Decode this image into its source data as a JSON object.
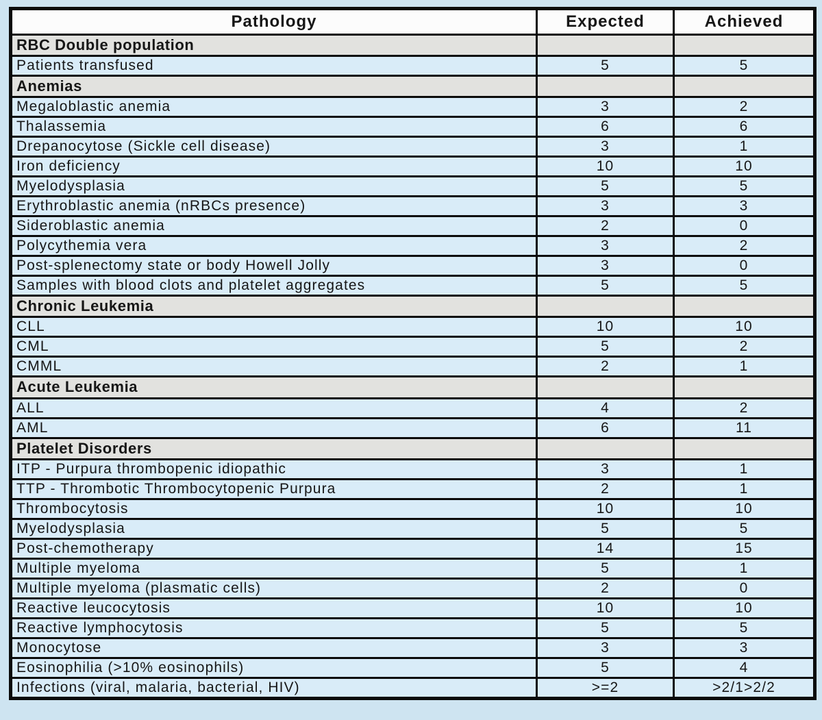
{
  "colors": {
    "page_background": "#cee4f1",
    "data_row_background": "#d9ecf8",
    "section_row_background": "#e2e2df",
    "header_row_background": "#fcfcfc",
    "border": "#0b0b0b",
    "text": "#161616"
  },
  "table": {
    "columns": [
      "Pathology",
      "Expected",
      "Achieved"
    ],
    "rows": [
      {
        "type": "section",
        "label": "RBC Double population",
        "expected": "",
        "achieved": ""
      },
      {
        "type": "data",
        "label": "Patients transfused",
        "expected": "5",
        "achieved": "5"
      },
      {
        "type": "section",
        "label": "Anemias",
        "expected": "",
        "achieved": ""
      },
      {
        "type": "data",
        "label": "Megaloblastic anemia",
        "expected": "3",
        "achieved": "2"
      },
      {
        "type": "data",
        "label": "Thalassemia",
        "expected": "6",
        "achieved": "6"
      },
      {
        "type": "data",
        "label": "Drepanocytose (Sickle cell disease)",
        "expected": "3",
        "achieved": "1"
      },
      {
        "type": "data",
        "label": "Iron deficiency",
        "expected": "10",
        "achieved": "10"
      },
      {
        "type": "data",
        "label": "Myelodysplasia",
        "expected": "5",
        "achieved": "5"
      },
      {
        "type": "data",
        "label": "Erythroblastic anemia (nRBCs presence)",
        "expected": "3",
        "achieved": "3"
      },
      {
        "type": "data",
        "label": "Sideroblastic anemia",
        "expected": "2",
        "achieved": "0"
      },
      {
        "type": "data",
        "label": "Polycythemia vera",
        "expected": "3",
        "achieved": "2"
      },
      {
        "type": "data",
        "label": "Post-splenectomy state or body Howell Jolly",
        "expected": "3",
        "achieved": "0"
      },
      {
        "type": "data",
        "label": "Samples with blood clots and platelet aggregates",
        "expected": "5",
        "achieved": "5"
      },
      {
        "type": "section",
        "label": "Chronic Leukemia",
        "expected": "",
        "achieved": ""
      },
      {
        "type": "data",
        "label": "CLL",
        "expected": "10",
        "achieved": "10"
      },
      {
        "type": "data",
        "label": "CML",
        "expected": "5",
        "achieved": "2"
      },
      {
        "type": "data",
        "label": "CMML",
        "expected": "2",
        "achieved": "1"
      },
      {
        "type": "section",
        "label": "Acute Leukemia",
        "expected": "",
        "achieved": ""
      },
      {
        "type": "data",
        "label": "ALL",
        "expected": "4",
        "achieved": "2"
      },
      {
        "type": "data",
        "label": "AML",
        "expected": "6",
        "achieved": "11"
      },
      {
        "type": "section",
        "label": "Platelet Disorders",
        "expected": "",
        "achieved": ""
      },
      {
        "type": "data",
        "label": "ITP - Purpura thrombopenic idiopathic",
        "expected": "3",
        "achieved": "1"
      },
      {
        "type": "data",
        "label": "TTP - Thrombotic Thrombocytopenic Purpura",
        "expected": "2",
        "achieved": "1"
      },
      {
        "type": "data",
        "label": "Thrombocytosis",
        "expected": "10",
        "achieved": "10"
      },
      {
        "type": "data",
        "label": "Myelodysplasia",
        "expected": "5",
        "achieved": "5"
      },
      {
        "type": "data",
        "label": "Post-chemotherapy",
        "expected": "14",
        "achieved": "15"
      },
      {
        "type": "data",
        "label": "Multiple myeloma",
        "expected": "5",
        "achieved": "1"
      },
      {
        "type": "data",
        "label": "Multiple myeloma (plasmatic cells)",
        "expected": "2",
        "achieved": "0"
      },
      {
        "type": "data",
        "label": "Reactive leucocytosis",
        "expected": "10",
        "achieved": "10"
      },
      {
        "type": "data",
        "label": "Reactive lymphocytosis",
        "expected": "5",
        "achieved": "5"
      },
      {
        "type": "data",
        "label": "Monocytose",
        "expected": "3",
        "achieved": "3"
      },
      {
        "type": "data",
        "label": "Eosinophilia (>10% eosinophils)",
        "expected": "5",
        "achieved": "4"
      },
      {
        "type": "data",
        "label": "Infections (viral, malaria, bacterial, HIV)",
        "expected": ">=2",
        "achieved": ">2/1>2/2"
      }
    ]
  }
}
